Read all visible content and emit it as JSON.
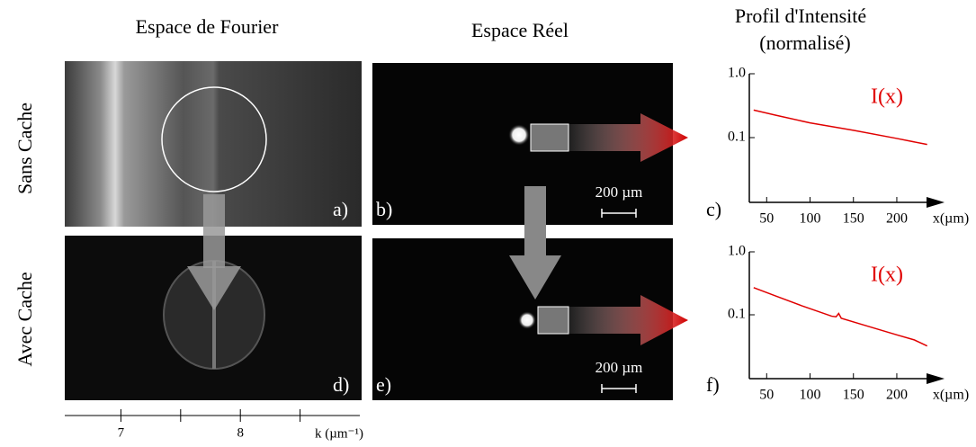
{
  "header": {
    "fourier": "Espace de Fourier",
    "real": "Espace Réel",
    "profile": "Profil d'Intensité",
    "profile_sub": "(normalisé)"
  },
  "rows": [
    "Sans Cache",
    "Avec Cache"
  ],
  "panels": [
    "a)",
    "b)",
    "c)",
    "d)",
    "e)",
    "f)"
  ],
  "scale_bars": [
    "200 µm",
    "200 µm"
  ],
  "k_axis": {
    "label": "k (µm⁻¹)",
    "xlim": [
      6.53,
      9.0
    ],
    "xticks": [
      7,
      8
    ],
    "minor_xticks": [
      7.5,
      8.5
    ]
  },
  "chart_data": [
    {
      "type": "line",
      "xlabel": "x(µm)",
      "xlim": [
        30,
        255
      ],
      "ylim": [
        0.01,
        1
      ],
      "log_y": true,
      "xticks": [
        50,
        100,
        150,
        200
      ],
      "yticks": [
        {
          "value": 1,
          "label": "1.0"
        },
        0.1
      ],
      "x": [
        35,
        60,
        100,
        150,
        200,
        235
      ],
      "series": [
        {
          "name": "I(x)",
          "color": "#e00000",
          "values": [
            0.27,
            0.225,
            0.17,
            0.13,
            0.097,
            0.078
          ]
        }
      ]
    },
    {
      "type": "line",
      "xlabel": "x(µm)",
      "xlim": [
        30,
        255
      ],
      "ylim": [
        0.01,
        1
      ],
      "log_y": true,
      "xticks": [
        50,
        100,
        150,
        200
      ],
      "yticks": [
        {
          "value": 1,
          "label": "1.0"
        },
        0.1
      ],
      "x": [
        35,
        60,
        90,
        125,
        130,
        133,
        136,
        160,
        200,
        220,
        235
      ],
      "series": [
        {
          "name": "I(x)",
          "color": "#e00000",
          "values": [
            0.27,
            0.2,
            0.14,
            0.095,
            0.093,
            0.105,
            0.088,
            0.07,
            0.048,
            0.04,
            0.032
          ]
        }
      ]
    }
  ]
}
